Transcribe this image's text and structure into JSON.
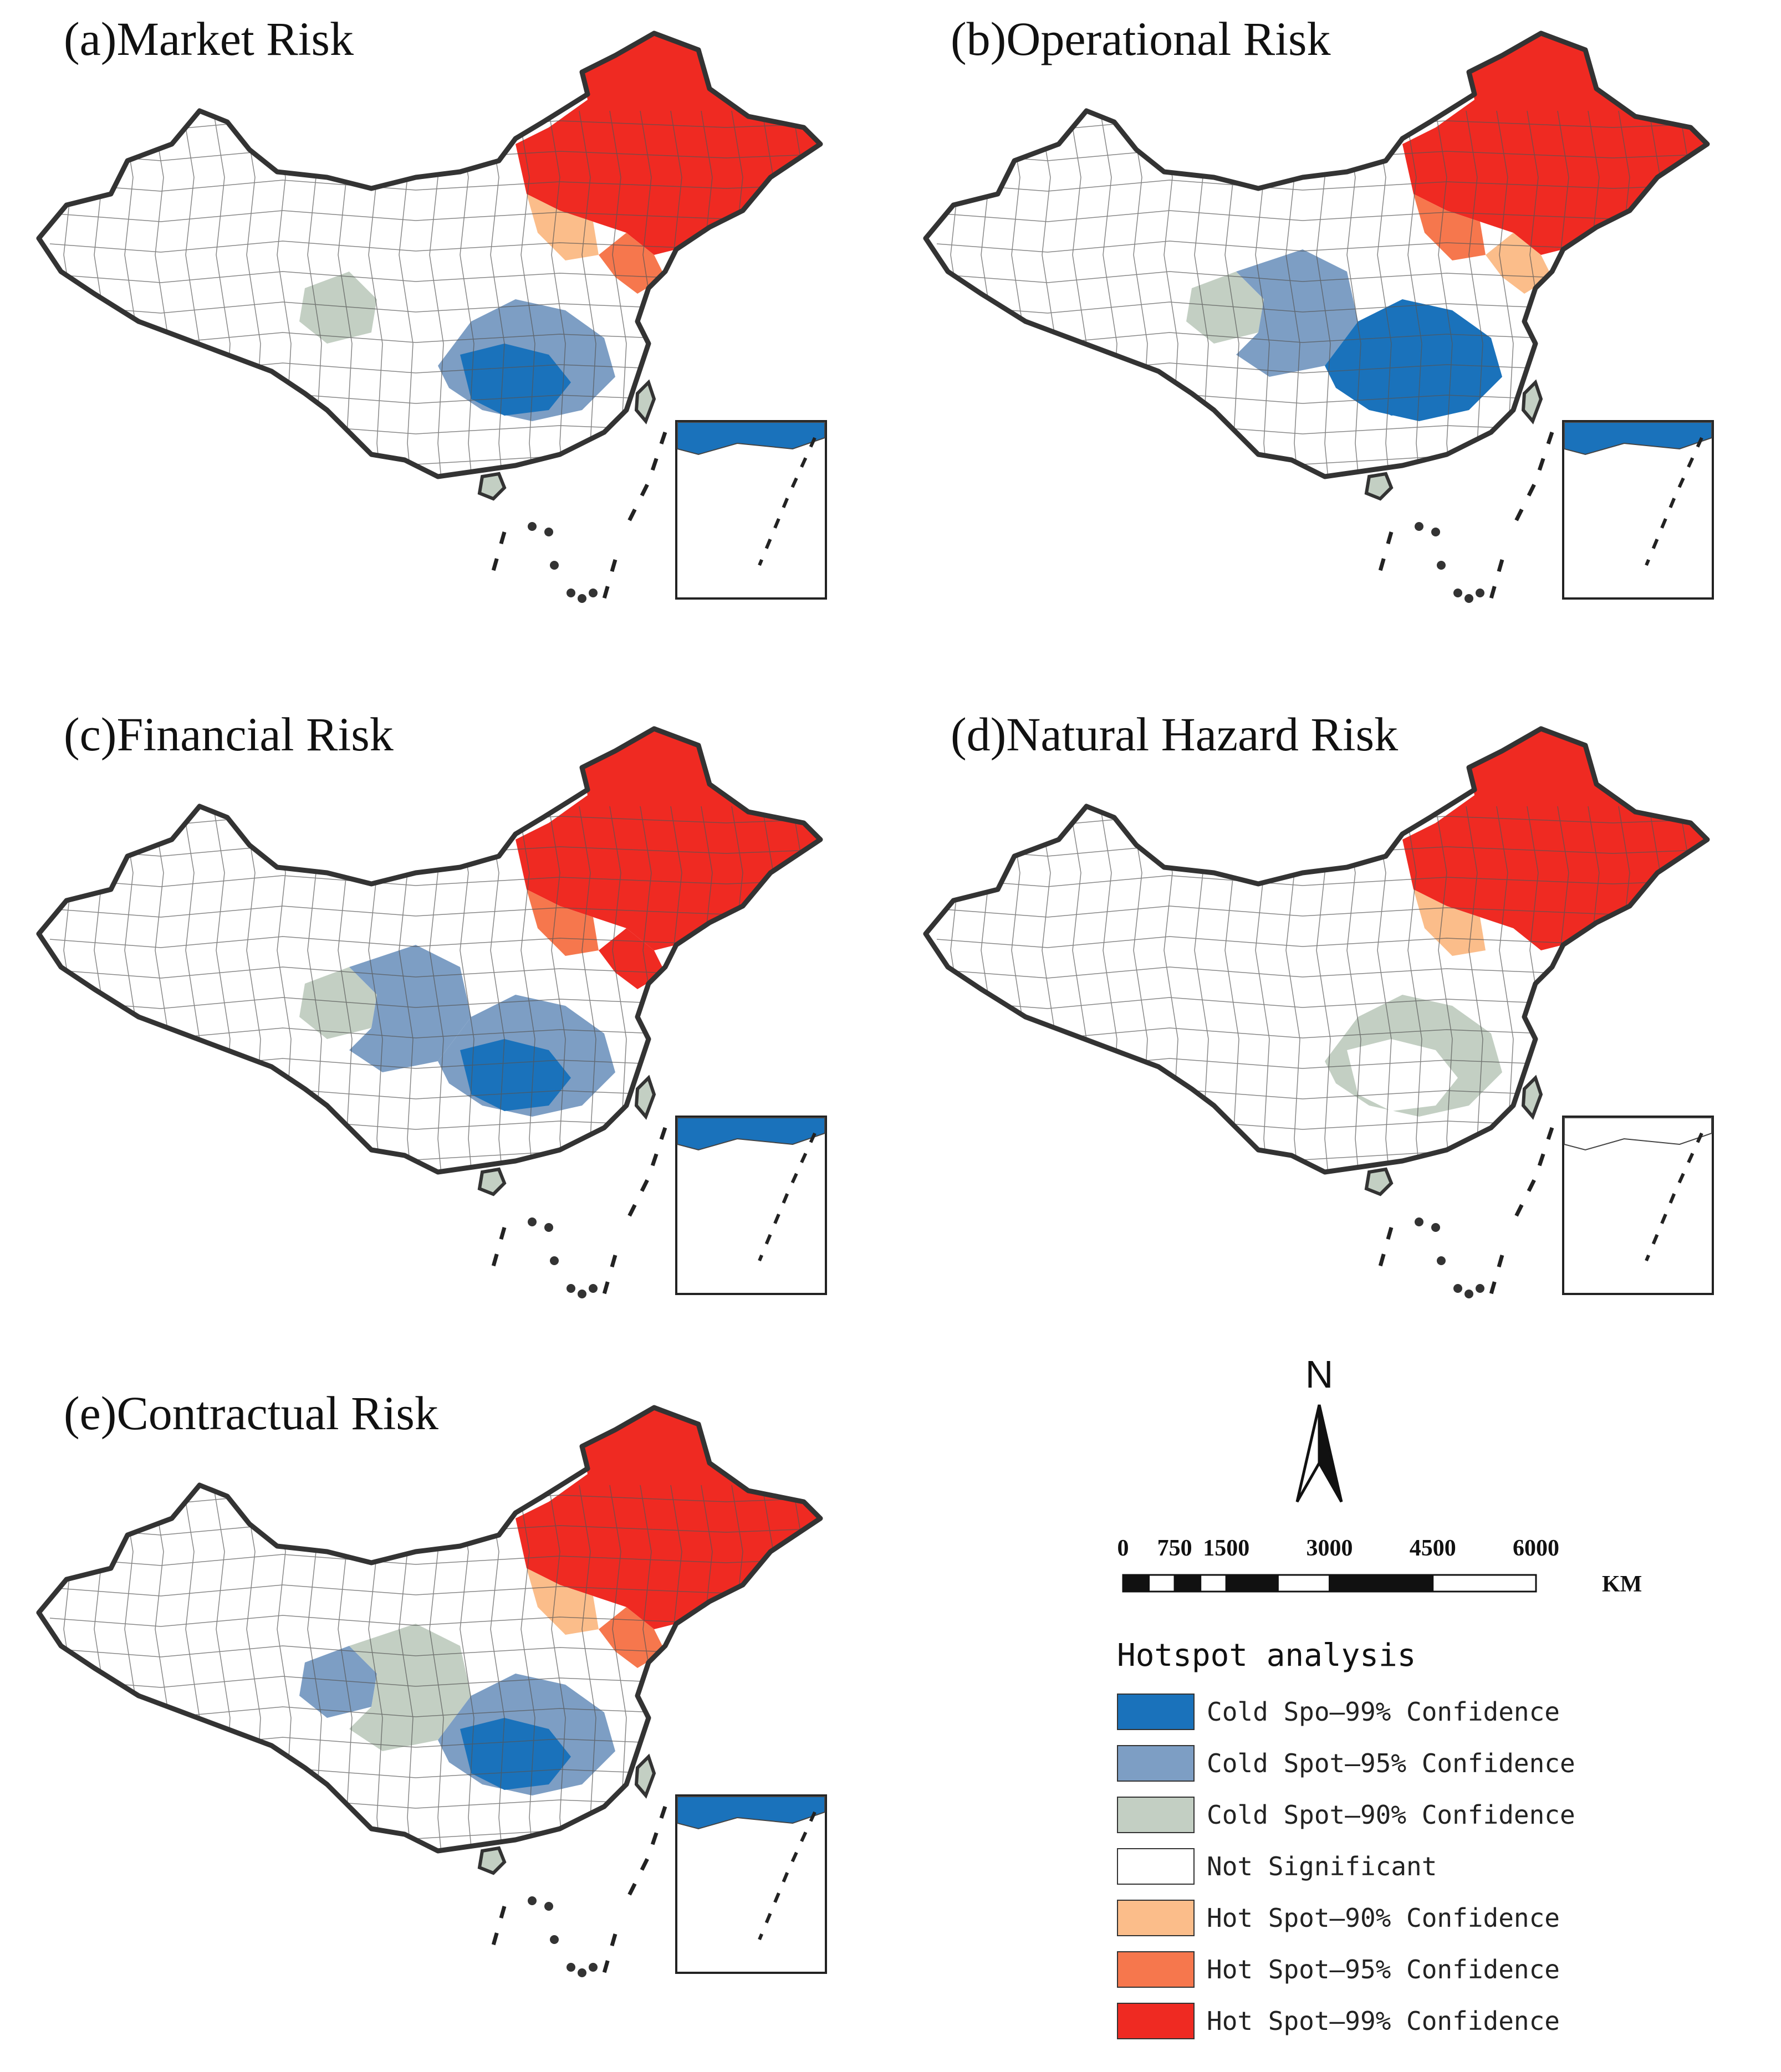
{
  "figure": {
    "panels": [
      {
        "id": "a",
        "title": "(a)Market Risk",
        "classes": {
          "northeast": "hot99",
          "north_border": "hot90",
          "bohai_coast": "hot95",
          "southwest": "ns",
          "south_central": "cold95",
          "south_core": "cold99",
          "west_central": "cold90"
        }
      },
      {
        "id": "b",
        "title": "(b)Operational Risk",
        "classes": {
          "northeast": "hot99",
          "north_border": "hot95",
          "bohai_coast": "hot90",
          "southwest": "cold95",
          "south_central": "cold99",
          "south_core": "cold99",
          "west_central": "cold90"
        }
      },
      {
        "id": "c",
        "title": "(c)Financial Risk",
        "classes": {
          "northeast": "hot99",
          "north_border": "hot95",
          "bohai_coast": "hot99",
          "southwest": "cold95",
          "south_central": "cold95",
          "south_core": "cold99",
          "west_central": "cold90"
        }
      },
      {
        "id": "d",
        "title": "(d)Natural Hazard Risk",
        "classes": {
          "northeast": "hot99",
          "north_border": "hot90",
          "bohai_coast": "ns",
          "southwest": "ns",
          "south_central": "cold90",
          "south_core": "ns",
          "west_central": "ns"
        }
      },
      {
        "id": "e",
        "title": "(e)Contractual Risk",
        "classes": {
          "northeast": "hot99",
          "north_border": "hot90",
          "bohai_coast": "hot95",
          "southwest": "cold90",
          "south_central": "cold95",
          "south_core": "cold99",
          "west_central": "cold95"
        }
      }
    ]
  },
  "compass": {
    "label": "N"
  },
  "scalebar": {
    "ticks": [
      "0",
      "750",
      "1500",
      "3000",
      "4500",
      "6000"
    ],
    "tick_values": [
      0,
      750,
      1500,
      3000,
      4500,
      6000
    ],
    "unit": "KM"
  },
  "legend": {
    "title": "Hotspot analysis",
    "items": [
      {
        "key": "cold99",
        "label": "Cold Spo‒99% Confidence",
        "color": "#1a72bb"
      },
      {
        "key": "cold95",
        "label": "Cold Spot‒95% Confidence",
        "color": "#7d9ec4"
      },
      {
        "key": "cold90",
        "label": "Cold Spot‒90% Confidence",
        "color": "#c3cfc3"
      },
      {
        "key": "ns",
        "label": "Not Significant",
        "color": "#ffffff"
      },
      {
        "key": "hot90",
        "label": "Hot Spot‒90% Confidence",
        "color": "#fbbd8a"
      },
      {
        "key": "hot95",
        "label": "Hot Spot‒95% Confidence",
        "color": "#f6774d"
      },
      {
        "key": "hot99",
        "label": "Hot Spot‒99% Confidence",
        "color": "#ef2a22"
      }
    ]
  }
}
